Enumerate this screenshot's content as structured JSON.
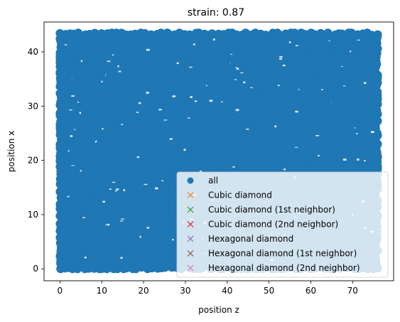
{
  "chart_data": {
    "type": "scatter",
    "title": "strain: 0.87",
    "xlabel": "position z",
    "ylabel": "position x",
    "xlim": [
      -3.8,
      79.8
    ],
    "ylim": [
      -2.2,
      45.5
    ],
    "xticks": [
      0,
      10,
      20,
      30,
      40,
      50,
      60,
      70
    ],
    "yticks": [
      0,
      10,
      20,
      30,
      40
    ],
    "grid": false,
    "legend_position": "lower right",
    "colors": {
      "all": "#1f77b4",
      "cubic": "#ff7f0e",
      "cubic_1st": "#2ca02c",
      "cubic_2nd": "#d62728",
      "hex": "#9467bd",
      "hex_1st": "#8c564b",
      "hex_2nd": "#e377c2"
    },
    "series": [
      {
        "name": "all",
        "marker": "circle",
        "extent": {
          "x": [
            0,
            76
          ],
          "y": [
            0,
            43.5
          ]
        },
        "density": "dense"
      },
      {
        "name": "Cubic diamond",
        "marker": "x",
        "points": []
      },
      {
        "name": "Cubic diamond (1st neighbor)",
        "marker": "x",
        "points": []
      },
      {
        "name": "Cubic diamond (2nd neighbor)",
        "marker": "x",
        "points": []
      },
      {
        "name": "Hexagonal diamond",
        "marker": "x",
        "points": []
      },
      {
        "name": "Hexagonal diamond (1st neighbor)",
        "marker": "x",
        "points": []
      },
      {
        "name": "Hexagonal diamond (2nd neighbor)",
        "marker": "x",
        "points": []
      }
    ]
  }
}
